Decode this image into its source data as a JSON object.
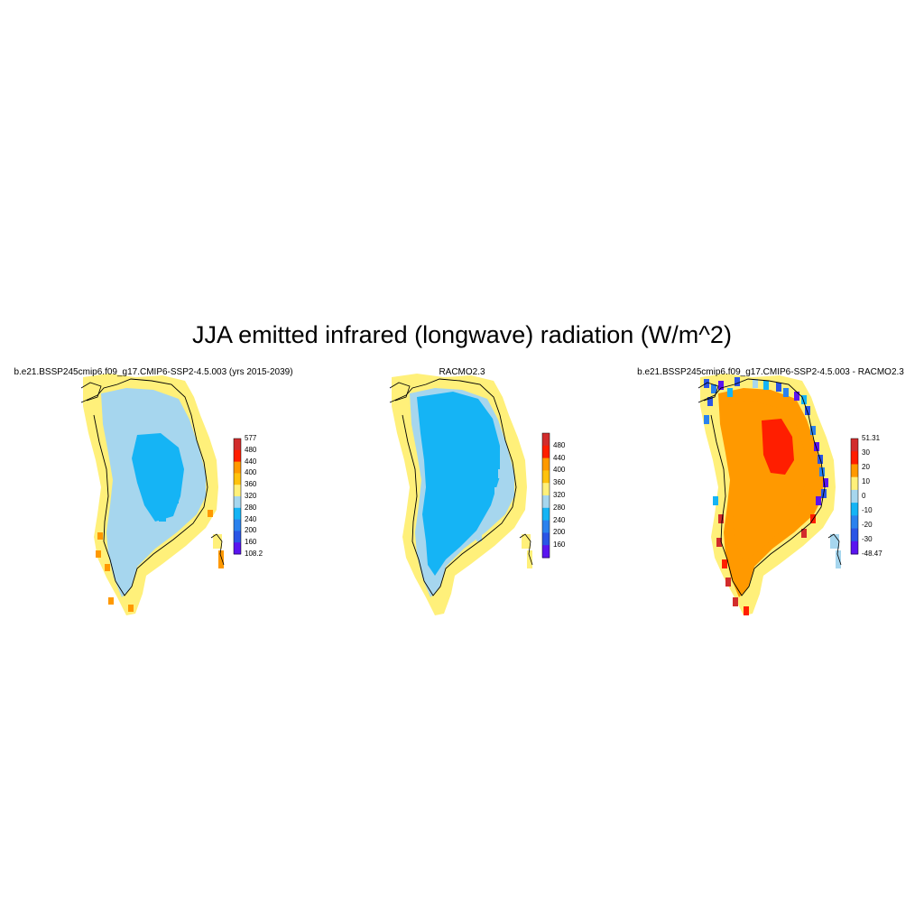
{
  "title": "JJA emitted infrared (longwave) radiation (W/m^2)",
  "colors": {
    "abs_scale": [
      "#5a14f0",
      "#2a55e6",
      "#2a82ee",
      "#15b4f5",
      "#a6d6ee",
      "#fff07a",
      "#ffc20e",
      "#ff9900",
      "#ff1e00",
      "#d22c2c"
    ],
    "diff_scale": [
      "#5a14f0",
      "#2a55e6",
      "#2a82ee",
      "#15b4f5",
      "#a6d6ee",
      "#fff07a",
      "#ff9900",
      "#ff1e00",
      "#d22c2c"
    ]
  },
  "panels": [
    {
      "title": "b.e21.BSSP245cmip6.f09_g17.CMIP6-SSP2-4.5.003 (yrs 2015-2039)",
      "colorbar_labels": [
        "577",
        "480",
        "440",
        "400",
        "360",
        "320",
        "280",
        "240",
        "200",
        "160",
        "108.2"
      ],
      "fields": {
        "interior": "280-320",
        "mid": "320-360",
        "edge": "360-400"
      }
    },
    {
      "title": "RACMO2.3",
      "colorbar_labels": [
        "480",
        "440",
        "400",
        "360",
        "320",
        "280",
        "240",
        "200",
        "160"
      ],
      "fields": {
        "interior": "280-320",
        "mid": "320-360",
        "edge": "360-400"
      }
    },
    {
      "title": "b.e21.BSSP245cmip6.f09_g17.CMIP6-SSP2-4.5.003 - RACMO2.3",
      "colorbar_labels": [
        "51.31",
        "30",
        "20",
        "10",
        "0",
        "-10",
        "-20",
        "-30",
        "-48.47"
      ],
      "fields": {
        "interior": "20-30",
        "mid": "10-20",
        "edge": "0-10"
      }
    }
  ]
}
